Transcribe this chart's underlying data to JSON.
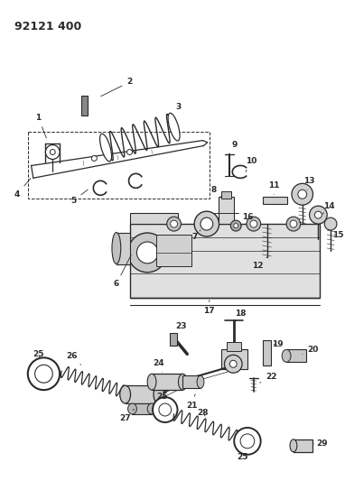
{
  "title": "92121 400",
  "bg": "#ffffff",
  "lc": "#2a2a2a",
  "fig_w": 3.82,
  "fig_h": 5.33,
  "dpi": 100,
  "label_fs": 6.5,
  "title_fs": 9
}
